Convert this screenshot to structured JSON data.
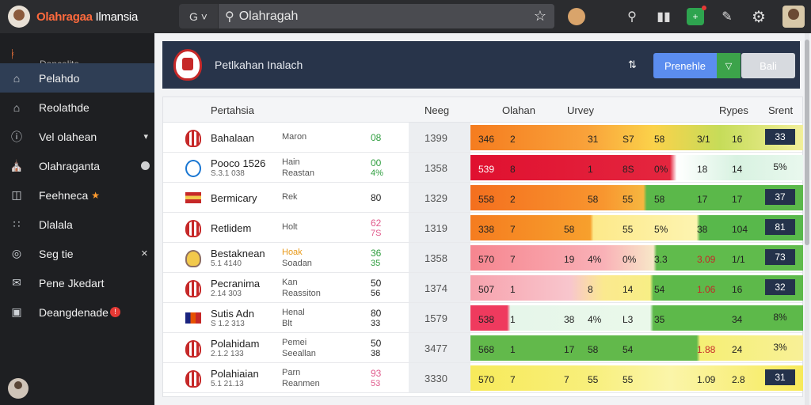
{
  "app": {
    "title_accent": "Olahragaa",
    "title_rest": " Ilmansia"
  },
  "search": {
    "g_label": "G",
    "g_arrow": "˅",
    "value": "Olahragah"
  },
  "sidebar": {
    "top_label": "Dancelite",
    "items": [
      {
        "label": "Pelahdo",
        "icon": "home-icon",
        "active": true
      },
      {
        "label": "Reolathde",
        "icon": "house-outline-icon"
      },
      {
        "label": "Vel olahean",
        "icon": "info-icon",
        "trail": "▾"
      },
      {
        "label": "Olahraganta",
        "icon": "bank-icon"
      },
      {
        "label": "Feehneca",
        "icon": "grid-icon"
      },
      {
        "label": "Dlalala",
        "icon": "dots-icon"
      },
      {
        "label": "Seg tie",
        "icon": "target-icon",
        "trail": "✕"
      },
      {
        "label": "Pene Jkedart",
        "icon": "mail-icon"
      },
      {
        "label": "Deangdenade",
        "icon": "lock-icon",
        "badge": "!"
      }
    ]
  },
  "header": {
    "title": "Petlkahan Inalach",
    "btn_blue": "Prenehle",
    "btn_green": "▽",
    "btn_grey": "Bali"
  },
  "table": {
    "columns": {
      "team": "Pertahsia",
      "neeg": "Neeg",
      "olahan": "Olahan",
      "urvey": "Urvey",
      "types": "Rypes",
      "srent": "Srent"
    },
    "rows": [
      {
        "name": "Bahalaan",
        "sub": "",
        "type": "Maron",
        "type2": "",
        "n1": "08",
        "n2": "",
        "date": "1399",
        "h": [
          "346",
          "2",
          "31",
          "S7",
          "58",
          "3/1",
          "16"
        ],
        "score": "33",
        "crest": "red"
      },
      {
        "name": "Pooco 1526",
        "sub": "S.3.1 038",
        "type": "Hain",
        "type2": "Reastan",
        "n1": "00",
        "n2": "4%",
        "date": "1358",
        "h": [
          "539",
          "8",
          "1",
          "8S",
          "0%",
          "18",
          "14"
        ],
        "score": "5%",
        "crest": "blue"
      },
      {
        "name": "Bermicary",
        "sub": "",
        "type": "Rek",
        "type2": "",
        "n1": "80",
        "n2": "",
        "date": "1329",
        "h": [
          "558",
          "2",
          "58",
          "55",
          "58",
          "17",
          "17"
        ],
        "score": "37",
        "crest": "flag"
      },
      {
        "name": "Retlidem",
        "sub": "",
        "type": "Holt",
        "type2": "",
        "n1": "62",
        "n2": "7S",
        "date": "1319",
        "h": [
          "338",
          "7",
          "58",
          "55",
          "5%",
          "38",
          "104"
        ],
        "score": "81",
        "crest": "red"
      },
      {
        "name": "Bestaknean",
        "sub": "5.1 4140",
        "type": "Hoak",
        "type2": "Soadan",
        "n1": "36",
        "n2": "35",
        "date": "1358",
        "h": [
          "570",
          "7",
          "19",
          "4%",
          "0%",
          "3.3",
          "3.09",
          "1/1"
        ],
        "score": "73",
        "crest": "gold"
      },
      {
        "name": "Pecranima",
        "sub": "2.14 303",
        "type": "Kan",
        "type2": "Reassiton",
        "n1": "50",
        "n2": "56",
        "date": "1374",
        "h": [
          "507",
          "1",
          "8",
          "14",
          "54",
          "1.06",
          "16"
        ],
        "score": "32",
        "crest": "red"
      },
      {
        "name": "Sutis Adn",
        "sub": "S 1.2 313",
        "type": "Henal",
        "type2": "Blt",
        "n1": "80",
        "n2": "33",
        "date": "1579",
        "h": [
          "538",
          "1",
          "38",
          "4%",
          "L3",
          "35",
          "34"
        ],
        "score": "8%",
        "crest": "flag2"
      },
      {
        "name": "Polahidam",
        "sub": "2.1.2 133",
        "type": "Pemei",
        "type2": "Seeallan",
        "n1": "50",
        "n2": "38",
        "date": "3477",
        "h": [
          "568",
          "1",
          "17",
          "58",
          "54",
          "1.88",
          "24"
        ],
        "score": "3%",
        "crest": "red"
      },
      {
        "name": "Polahiaian",
        "sub": "5.1 21.13",
        "type": "Parn",
        "type2": "Reanmen",
        "n1": "93",
        "n2": "53",
        "date": "3330",
        "h": [
          "570",
          "7",
          "7",
          "55",
          "55",
          "1.09",
          "2.8"
        ],
        "score": "31",
        "crest": "red"
      }
    ]
  }
}
